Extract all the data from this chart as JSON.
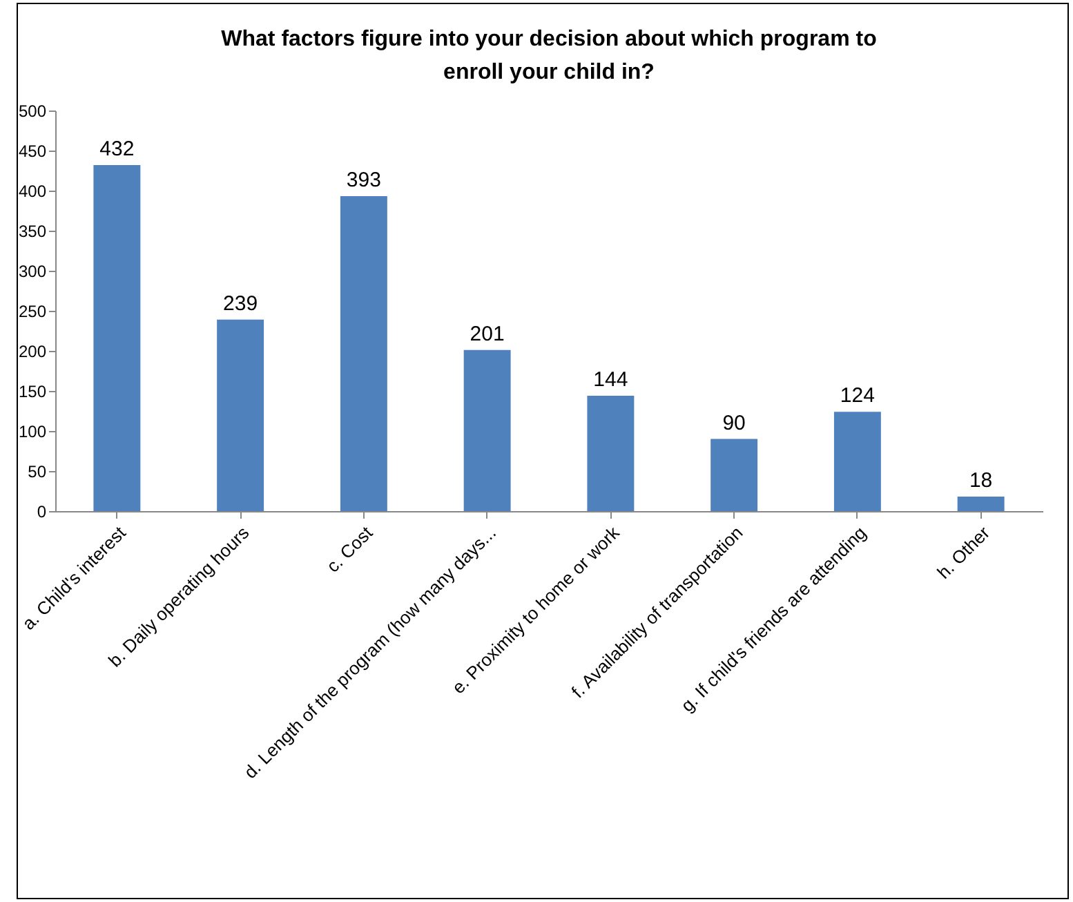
{
  "chart_data": {
    "type": "bar",
    "title": "What factors figure into your decision about which program to enroll your child in?",
    "categories": [
      "a. Child's interest",
      "b. Daily operating hours",
      "c. Cost",
      "d. Length of the program (how many days...",
      "e. Proximity to home or work",
      "f. Availability of transportation",
      "g. If child's friends are attending",
      "h. Other"
    ],
    "values": [
      432,
      239,
      393,
      201,
      144,
      90,
      124,
      18
    ],
    "color": "#4f81bd",
    "data_labels": true,
    "grid": false,
    "ylim": [
      0,
      500
    ],
    "yticks": [
      0,
      50,
      100,
      150,
      200,
      250,
      300,
      350,
      400,
      450,
      500
    ]
  }
}
